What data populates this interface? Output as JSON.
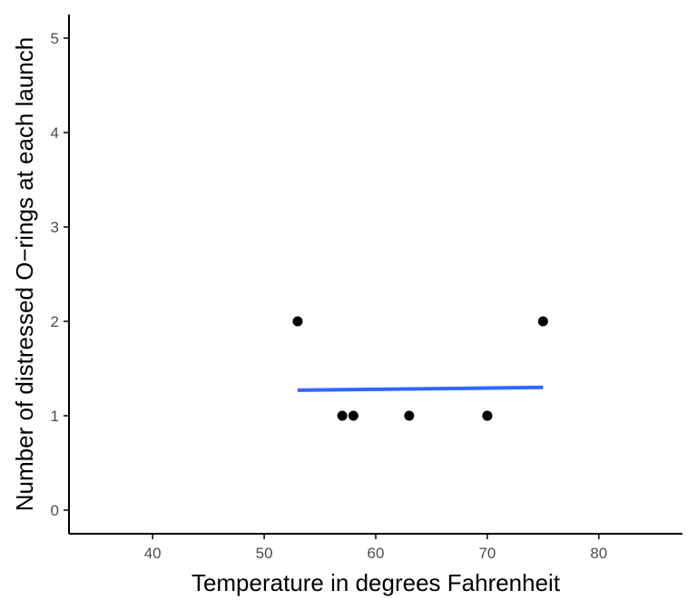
{
  "chart_data": {
    "type": "scatter",
    "title": "",
    "xlabel": "Temperature in degrees Fahrenheit",
    "ylabel": "Number of distressed O−rings at each launch",
    "xlim": [
      32.5,
      87.5
    ],
    "ylim": [
      -0.25,
      5.25
    ],
    "x_ticks": [
      40,
      50,
      60,
      70,
      80
    ],
    "y_ticks": [
      0,
      1,
      2,
      3,
      4,
      5
    ],
    "grid": false,
    "legend": "none",
    "points": [
      {
        "x": 53,
        "y": 2
      },
      {
        "x": 57,
        "y": 1
      },
      {
        "x": 58,
        "y": 1
      },
      {
        "x": 63,
        "y": 1
      },
      {
        "x": 70,
        "y": 1
      },
      {
        "x": 70,
        "y": 1
      },
      {
        "x": 75,
        "y": 2
      }
    ],
    "fit_line": {
      "x": [
        53,
        75
      ],
      "y": [
        1.27,
        1.3
      ]
    },
    "colors": {
      "points": "#000000",
      "fit_line": "#3366ff",
      "axis": "#000000",
      "tick_label": "#4d4d4d"
    }
  }
}
